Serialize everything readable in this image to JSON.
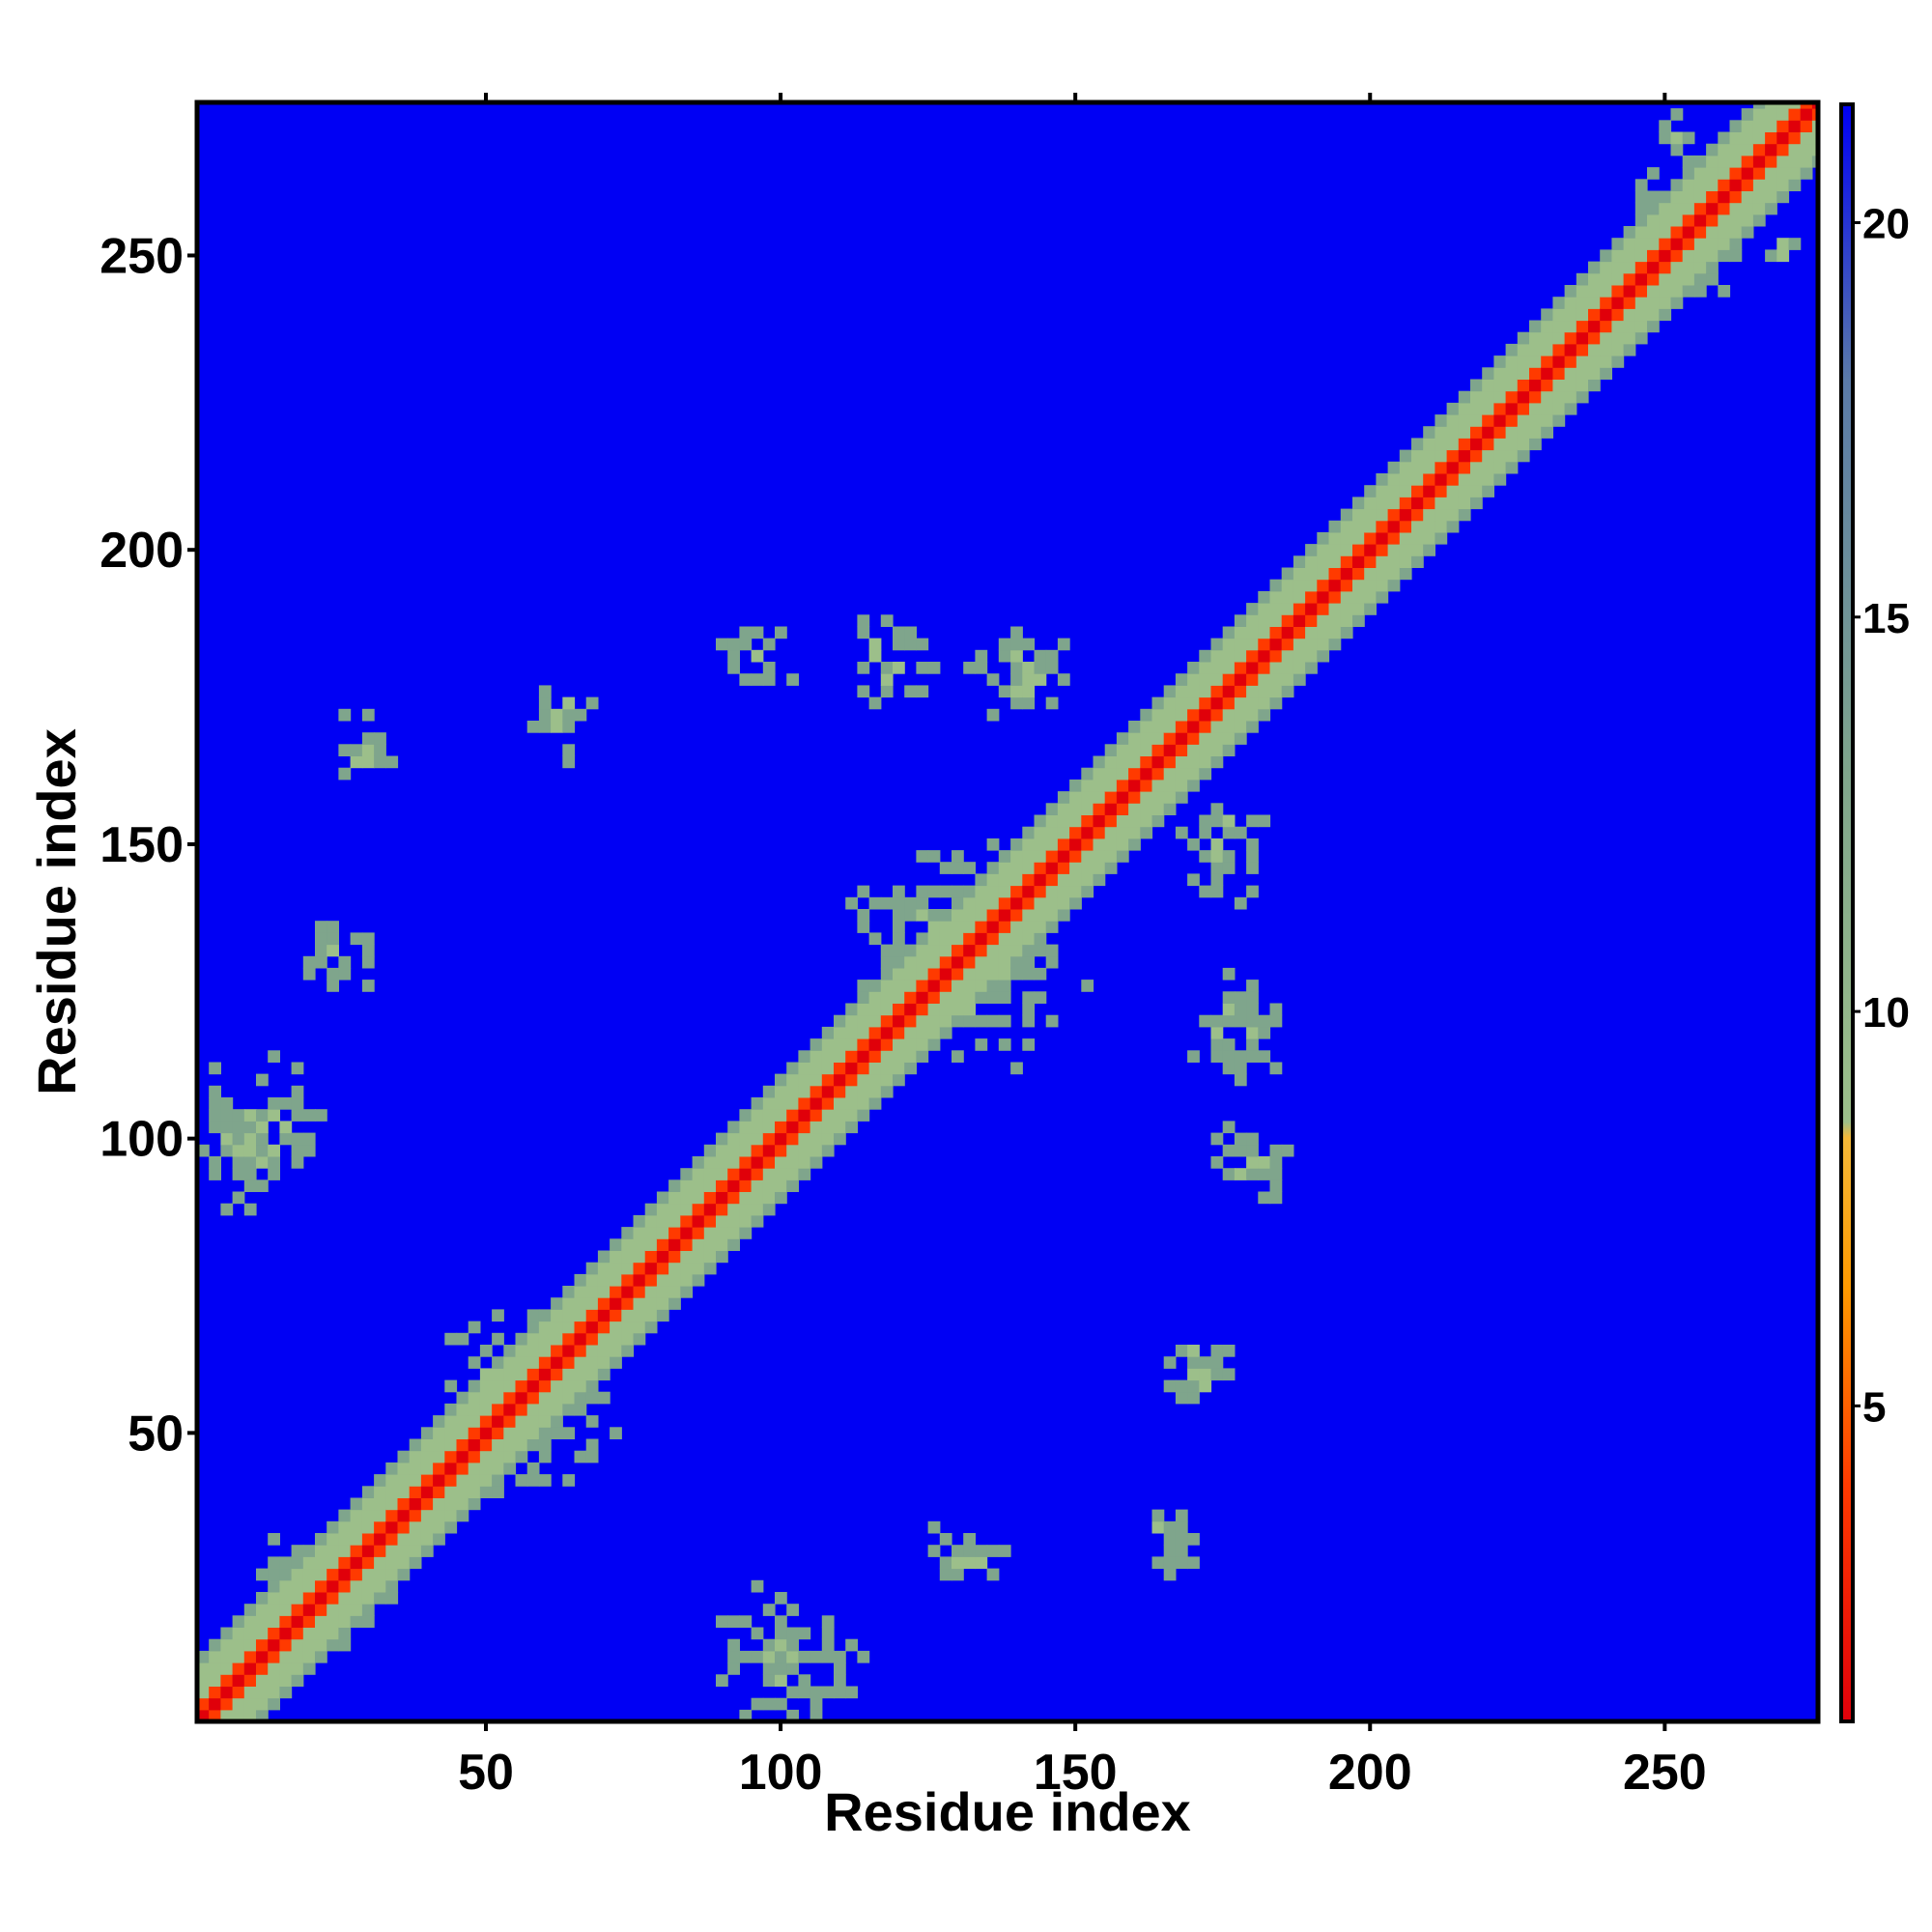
{
  "chart_data": {
    "type": "heatmap",
    "title": "",
    "xlabel": "Residue index",
    "ylabel": "Residue index",
    "n_residues": 276,
    "xlim": [
      1,
      276
    ],
    "ylim": [
      1,
      276
    ],
    "x_ticks": [
      50,
      100,
      150,
      200,
      250
    ],
    "y_ticks": [
      50,
      100,
      150,
      200,
      250
    ],
    "x_tick_labels": [
      "50",
      "100",
      "150",
      "200",
      "250"
    ],
    "y_tick_labels": [
      "50",
      "100",
      "150",
      "200",
      "250"
    ],
    "colorbar": {
      "range": [
        1,
        21.5
      ],
      "ticks": [
        5,
        10,
        15,
        20
      ],
      "tick_labels": [
        "5",
        "10",
        "15",
        "20"
      ],
      "colors": [
        {
          "value": 1,
          "color": "#e0000a"
        },
        {
          "value": 4,
          "color": "#ff3a00"
        },
        {
          "value": 6.5,
          "color": "#ff9a00"
        },
        {
          "value": 8.4,
          "color": "#f4b838"
        },
        {
          "value": 8.6,
          "color": "#9cbf8a"
        },
        {
          "value": 13,
          "color": "#7fa58c"
        },
        {
          "value": 18,
          "color": "#5a7aa8"
        },
        {
          "value": 21.5,
          "color": "#0000f4"
        }
      ]
    },
    "background_color": "#0000f4",
    "contact_features": [
      {
        "kind": "diagonal",
        "x_start": 1,
        "x_end": 276
      },
      {
        "kind": "cluster",
        "x": 55,
        "y": 55,
        "radius": 25
      },
      {
        "kind": "cluster",
        "x": 130,
        "y": 130,
        "radius": 30
      },
      {
        "kind": "cluster",
        "x": 255,
        "y": 255,
        "radius": 18
      },
      {
        "kind": "off-diagonal",
        "x": 140,
        "y": 178,
        "radius": 14
      },
      {
        "kind": "off-diagonal",
        "x": 118,
        "y": 180,
        "radius": 12
      },
      {
        "kind": "off-diagonal",
        "x": 95,
        "y": 180,
        "radius": 10
      },
      {
        "kind": "off-diagonal",
        "x": 175,
        "y": 148,
        "radius": 14
      },
      {
        "kind": "off-diagonal",
        "x": 178,
        "y": 118,
        "radius": 14
      },
      {
        "kind": "off-diagonal",
        "x": 180,
        "y": 95,
        "radius": 12
      },
      {
        "kind": "off-diagonal",
        "x": 170,
        "y": 60,
        "radius": 10
      },
      {
        "kind": "off-diagonal",
        "x": 165,
        "y": 30,
        "radius": 10
      },
      {
        "kind": "off-diagonal",
        "x": 130,
        "y": 28,
        "radius": 10
      },
      {
        "kind": "off-diagonal",
        "x": 28,
        "y": 165,
        "radius": 10
      },
      {
        "kind": "off-diagonal",
        "x": 62,
        "y": 170,
        "radius": 10
      },
      {
        "kind": "off-diagonal",
        "x": 25,
        "y": 130,
        "radius": 10
      },
      {
        "kind": "off-diagonal",
        "x": 10,
        "y": 100,
        "radius": 20
      },
      {
        "kind": "off-diagonal",
        "x": 100,
        "y": 10,
        "radius": 20
      },
      {
        "kind": "off-diagonal",
        "x": 20,
        "y": 20,
        "radius": 18
      },
      {
        "kind": "off-diagonal",
        "x": 250,
        "y": 270,
        "radius": 6
      },
      {
        "kind": "off-diagonal",
        "x": 270,
        "y": 250,
        "radius": 6
      }
    ]
  }
}
